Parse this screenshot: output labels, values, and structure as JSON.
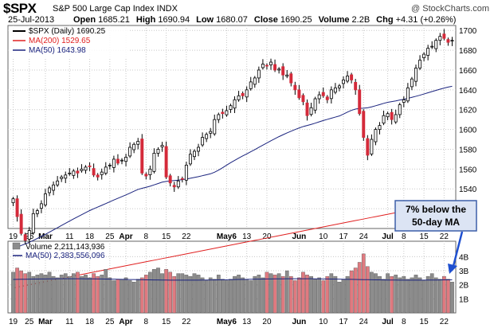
{
  "header": {
    "symbol": "$SPX",
    "name": "S&P 500 Large Cap Index INDX",
    "credit": "@ StockCharts.com",
    "date": "25-Jul-2013",
    "quote": [
      {
        "label": "Open",
        "value": "1685.21"
      },
      {
        "label": "High",
        "value": "1690.94"
      },
      {
        "label": "Low",
        "value": "1680.07"
      },
      {
        "label": "Close",
        "value": "1690.25"
      },
      {
        "label": "Volume",
        "value": "2.2B"
      },
      {
        "label": "Chg",
        "value": "+4.31 (+0.26%)"
      }
    ]
  },
  "colors": {
    "up": "#ffffff",
    "down": "#d42a3a",
    "ma200": "#e02020",
    "ma50": "#1a237e",
    "vol_down": "#e07a80",
    "vol_up": "#8c8c8c",
    "grid": "#c8c8c8",
    "annotation_fill": "#dce4f4",
    "annotation_border": "#3d5fa8",
    "arrow": "#1e4fd0"
  },
  "chart_data": [
    {
      "type": "candlestick",
      "legend": [
        {
          "text": "$SPX (Daily) 1690.25",
          "color": "#000000"
        },
        {
          "text": "MA(200) 1529.65",
          "color": "#e02020"
        },
        {
          "text": "MA(50) 1643.98",
          "color": "#1a237e"
        }
      ],
      "ylim": [
        1500,
        1705
      ],
      "yticks": [
        1520,
        1540,
        1560,
        1580,
        1600,
        1620,
        1640,
        1660,
        1680,
        1700
      ],
      "xticks": [
        {
          "label": "19",
          "i": 0,
          "bold": false
        },
        {
          "label": "25",
          "i": 4,
          "bold": false
        },
        {
          "label": "Mar",
          "i": 8,
          "bold": true
        },
        {
          "label": "11",
          "i": 14,
          "bold": false
        },
        {
          "label": "18",
          "i": 19,
          "bold": false
        },
        {
          "label": "25",
          "i": 24,
          "bold": false
        },
        {
          "label": "Apr",
          "i": 28,
          "bold": true
        },
        {
          "label": "8",
          "i": 33,
          "bold": false
        },
        {
          "label": "15",
          "i": 38,
          "bold": false
        },
        {
          "label": "22",
          "i": 43,
          "bold": false
        },
        {
          "label": "May6",
          "i": 53,
          "bold": true
        },
        {
          "label": "13",
          "i": 58,
          "bold": false
        },
        {
          "label": "20",
          "i": 63,
          "bold": false
        },
        {
          "label": "Jun",
          "i": 71,
          "bold": true
        },
        {
          "label": "10",
          "i": 77,
          "bold": false
        },
        {
          "label": "17",
          "i": 82,
          "bold": false
        },
        {
          "label": "24",
          "i": 87,
          "bold": false
        },
        {
          "label": "Jul",
          "i": 93,
          "bold": true
        },
        {
          "label": "8",
          "i": 97,
          "bold": false
        },
        {
          "label": "15",
          "i": 102,
          "bold": false
        },
        {
          "label": "22",
          "i": 107,
          "bold": false
        }
      ],
      "close": [
        1530,
        1512,
        1495,
        1488,
        1498,
        1515,
        1518,
        1525,
        1535,
        1541,
        1544,
        1548,
        1552,
        1554,
        1556,
        1558,
        1556,
        1560,
        1562,
        1563,
        1554,
        1552,
        1557,
        1562,
        1564,
        1570,
        1566,
        1569,
        1572,
        1582,
        1585,
        1588,
        1556,
        1553,
        1560,
        1576,
        1580,
        1584,
        1552,
        1546,
        1542,
        1548,
        1550,
        1564,
        1575,
        1578,
        1582,
        1592,
        1595,
        1598,
        1610,
        1615,
        1616,
        1619,
        1624,
        1630,
        1634,
        1634,
        1640,
        1648,
        1652,
        1660,
        1666,
        1664,
        1668,
        1660,
        1661,
        1655,
        1655,
        1647,
        1640,
        1632,
        1628,
        1614,
        1622,
        1631,
        1635,
        1634,
        1630,
        1640,
        1642,
        1644,
        1650,
        1654,
        1650,
        1640,
        1616,
        1592,
        1574,
        1590,
        1600,
        1604,
        1614,
        1616,
        1610,
        1615,
        1625,
        1630,
        1642,
        1651,
        1662,
        1670,
        1676,
        1682,
        1684,
        1690,
        1694,
        1692,
        1688,
        1690
      ],
      "volume": [
        2.9,
        3.2,
        3.0,
        2.8,
        2.9,
        2.6,
        2.7,
        2.8,
        2.7,
        2.9,
        2.6,
        2.5,
        2.7,
        2.8,
        2.6,
        2.8,
        2.9,
        2.6,
        2.7,
        2.5,
        2.8,
        2.6,
        2.7,
        3.1,
        2.5,
        2.3,
        2.4,
        2.4,
        2.5,
        2.3,
        2.2,
        2.4,
        2.5,
        2.7,
        2.9,
        3.1,
        3.2,
        2.8,
        3.1,
        2.9,
        2.6,
        2.8,
        2.8,
        2.7,
        2.6,
        2.8,
        2.7,
        2.5,
        2.3,
        2.5,
        2.4,
        2.7,
        2.4,
        2.3,
        2.4,
        2.6,
        2.7,
        2.5,
        2.4,
        2.3,
        2.6,
        2.7,
        2.5,
        2.9,
        2.8,
        2.7,
        2.8,
        2.6,
        3.0,
        2.6,
        2.3,
        2.5,
        2.9,
        2.7,
        2.6,
        2.4,
        2.5,
        2.3,
        2.6,
        2.8,
        2.6,
        2.2,
        2.4,
        2.6,
        3.0,
        3.2,
        3.6,
        4.2,
        3.3,
        2.9,
        2.8,
        2.6,
        2.4,
        2.8,
        2.6,
        2.7,
        2.5,
        2.6,
        2.4,
        2.5,
        2.7,
        2.5,
        2.3,
        2.6,
        2.8,
        2.5,
        2.4,
        2.6,
        2.4,
        2.2
      ]
    },
    {
      "type": "bar",
      "legend": [
        {
          "text": "Volume 2,211,143,936",
          "color": "#000000"
        },
        {
          "text": "MA(50) 2,383,556,096",
          "color": "#1a237e"
        }
      ],
      "ylim": [
        0,
        5.1
      ],
      "yticks": [
        {
          "v": 1,
          "label": "1B"
        },
        {
          "v": 2,
          "label": "2B"
        },
        {
          "v": 3,
          "label": "3B"
        },
        {
          "v": 4,
          "label": "4B"
        }
      ],
      "ma_value": 2.38
    }
  ],
  "annotation": {
    "text_line1": "7% below the",
    "text_line2": "50-day MA"
  }
}
